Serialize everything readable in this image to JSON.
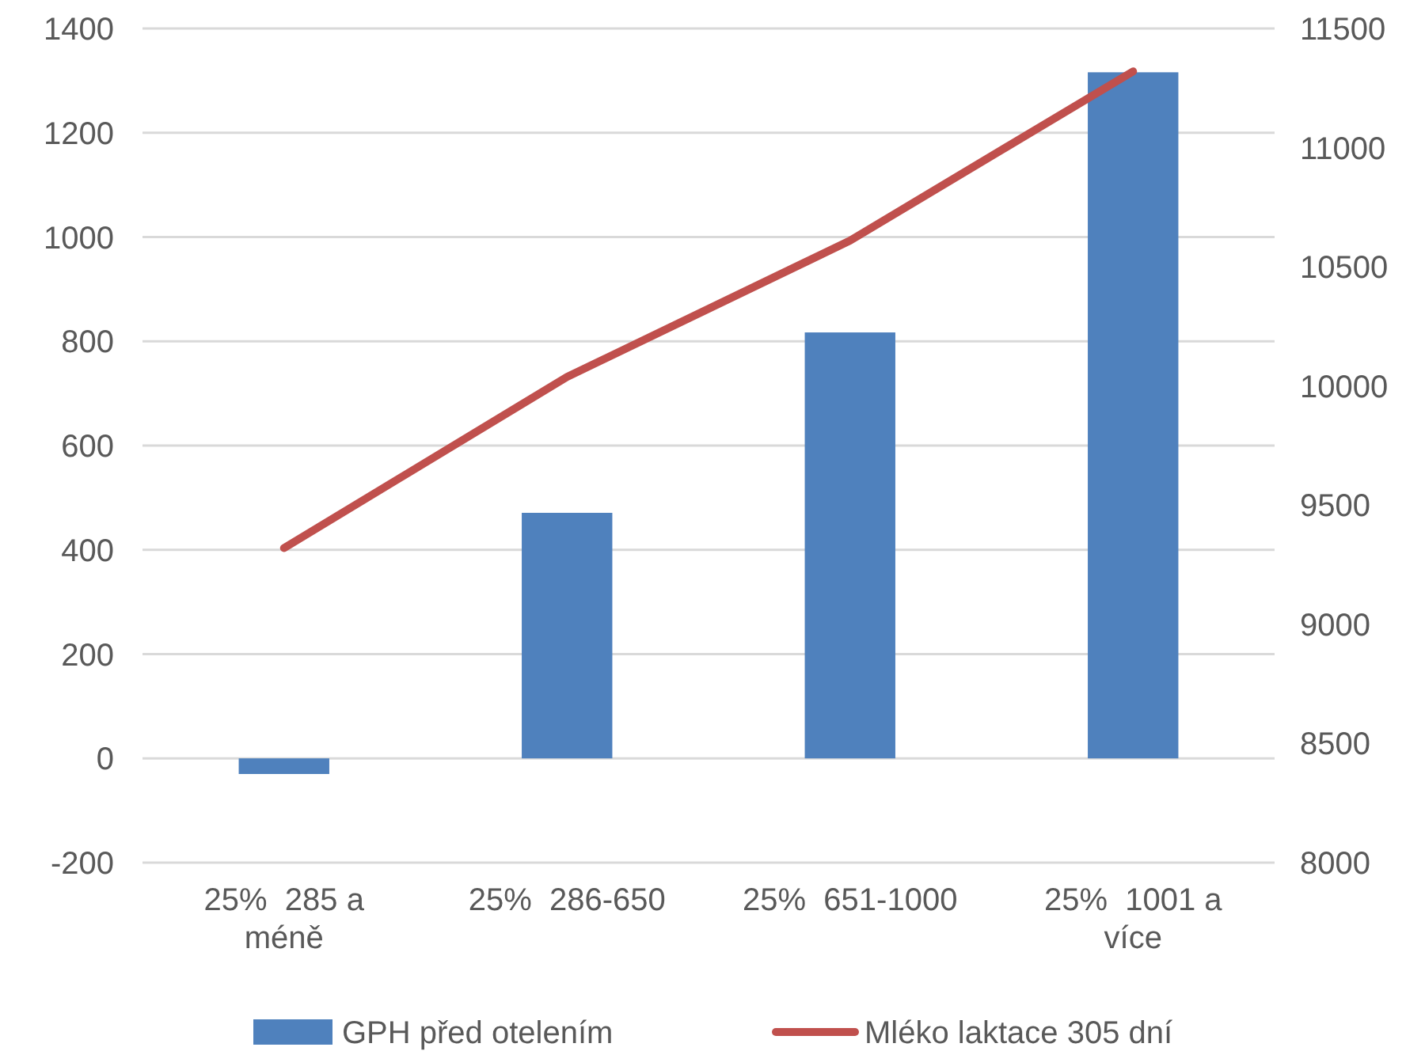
{
  "chart_data": {
    "type": "bar",
    "categories": [
      "25%  285 a méně",
      "25%  286-650",
      "25%  651-1000",
      "25%  1001 a více"
    ],
    "series": [
      {
        "name": "GPH před otelením",
        "color": "#4f81bd",
        "values": [
          -30,
          471,
          817,
          1316
        ]
      },
      {
        "name": "Mléko laktace 305 dní",
        "type": "line",
        "axis": "y2",
        "color": "#c0504d",
        "values": [
          9320,
          10038,
          10610,
          11320
        ]
      }
    ],
    "ylim": [
      -200,
      1400
    ],
    "yticks": [
      -200,
      0,
      200,
      400,
      600,
      800,
      1000,
      1200,
      1400
    ],
    "y2lim": [
      8000,
      11500
    ],
    "y2ticks": [
      8000,
      8500,
      9000,
      9500,
      10000,
      10500,
      11000,
      11500
    ],
    "grid": "y",
    "legend": "bottom"
  }
}
